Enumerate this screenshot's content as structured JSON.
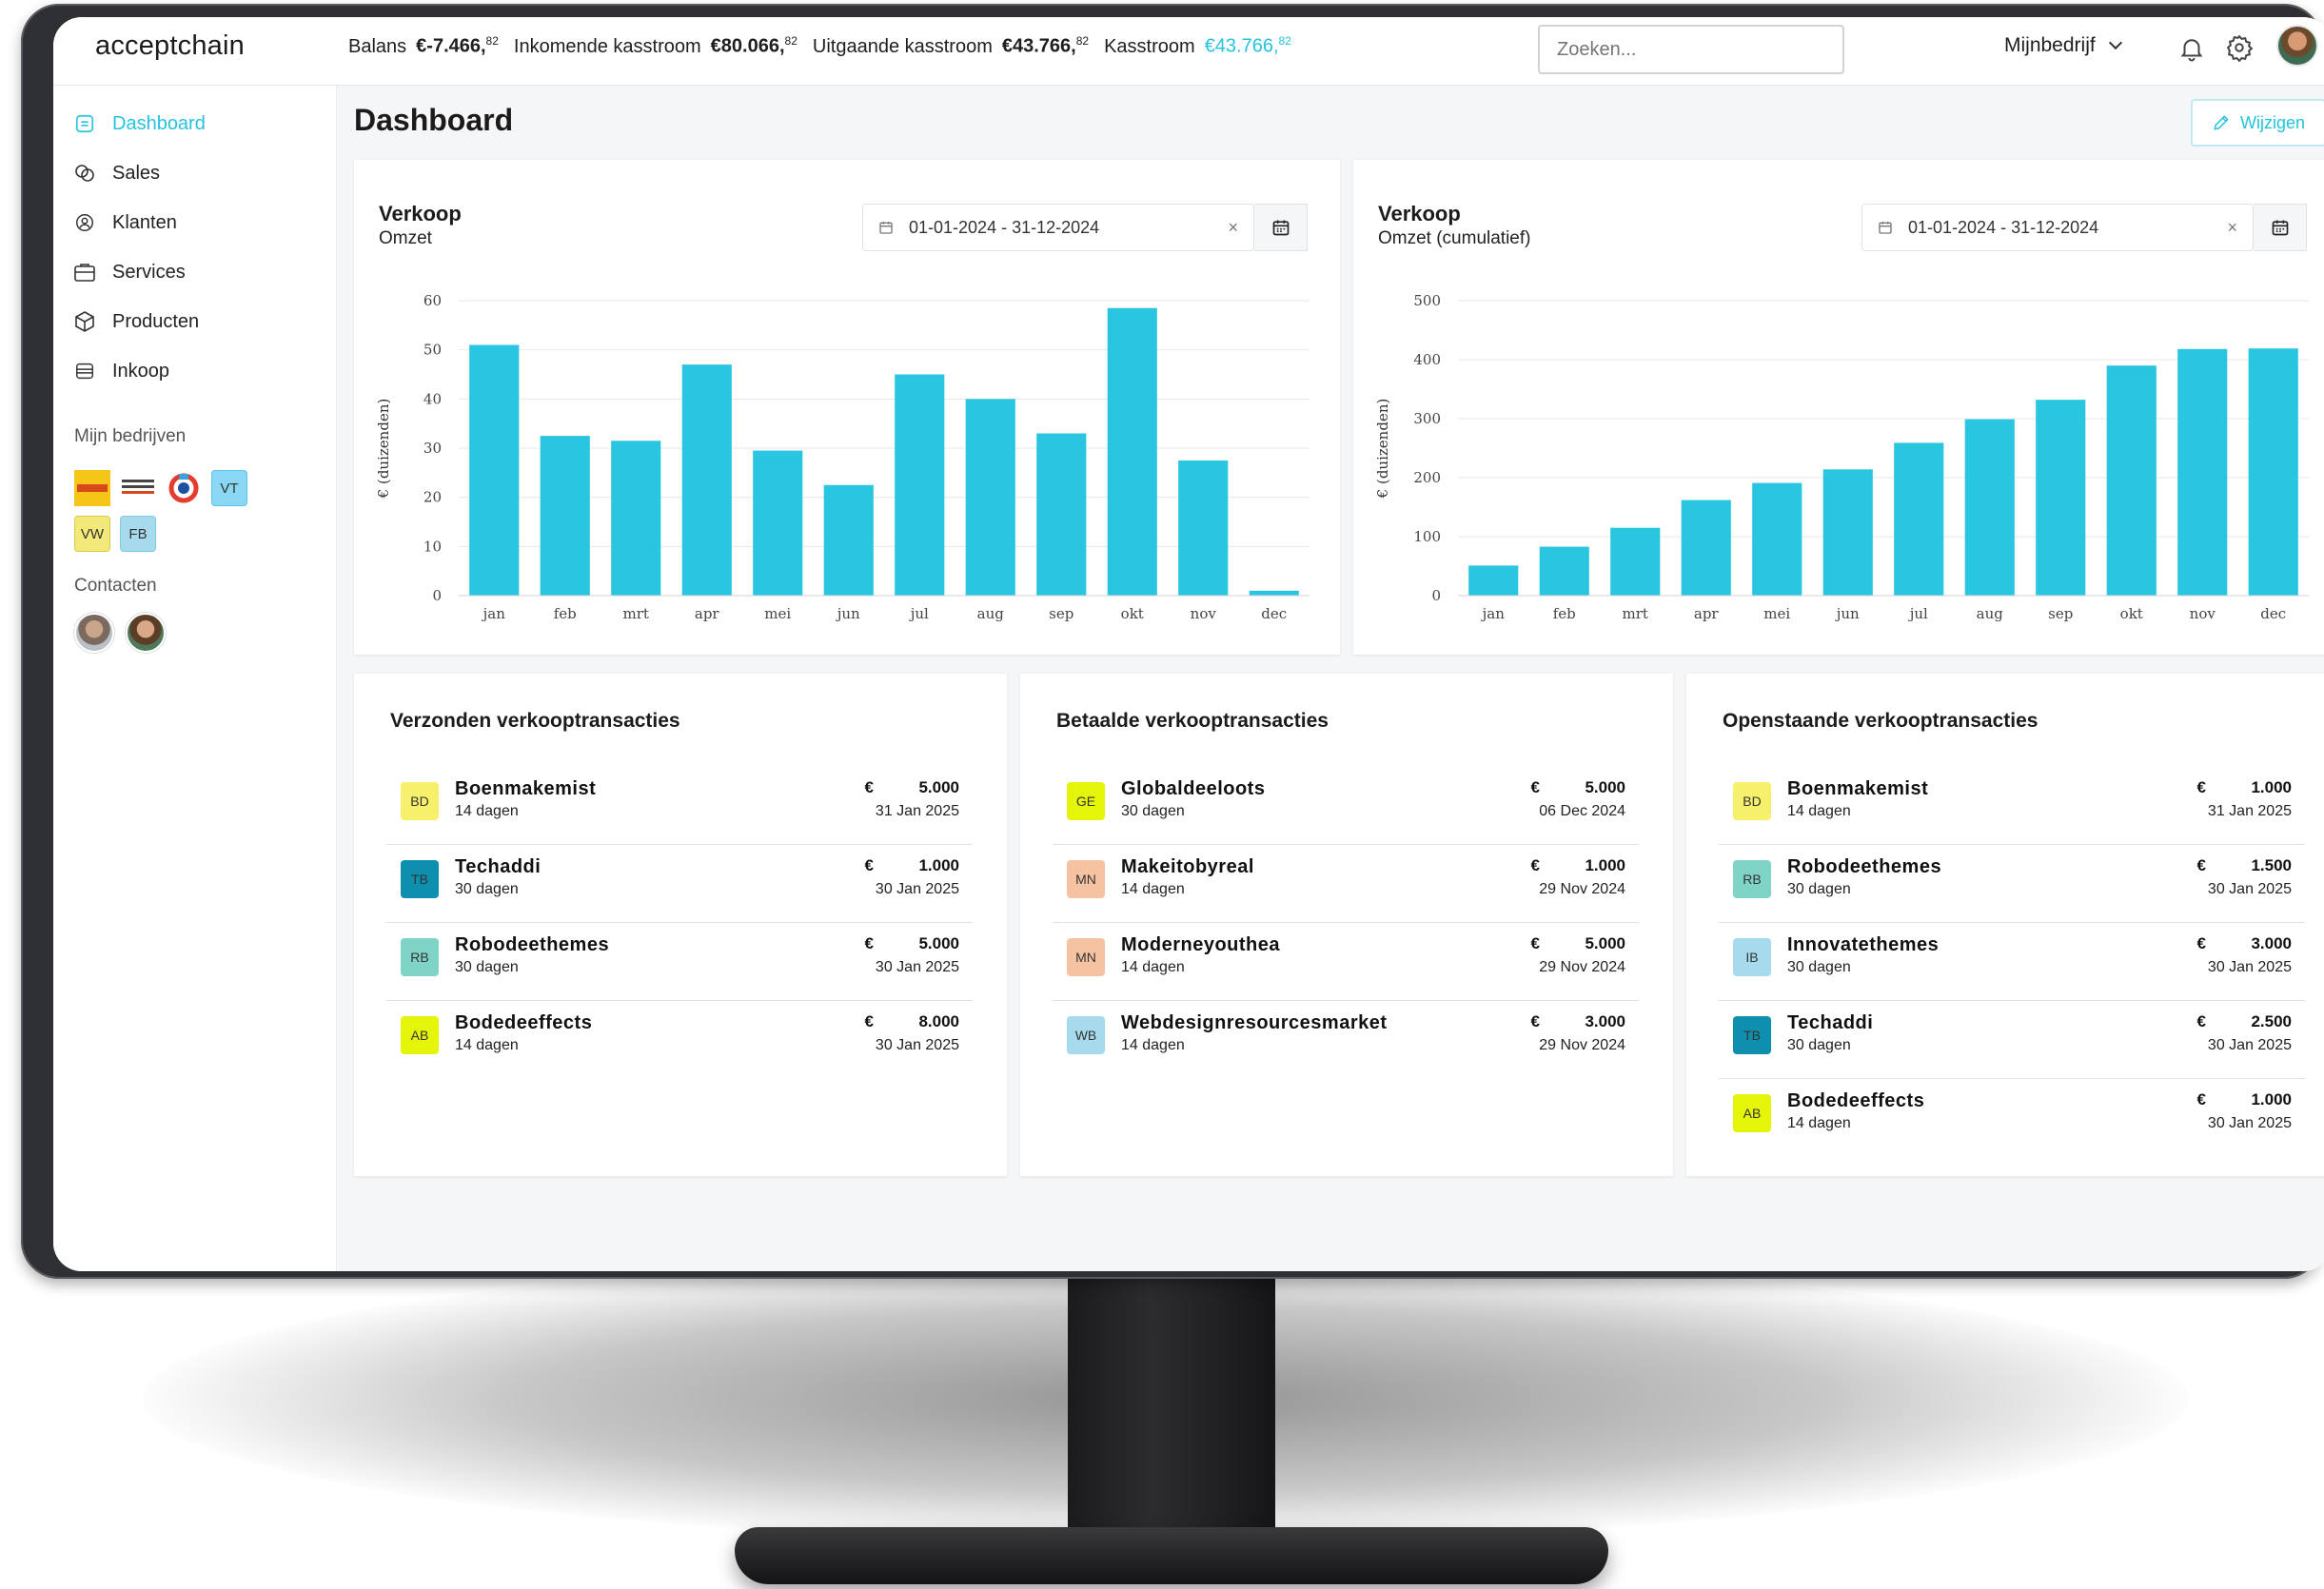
{
  "brand": "acceptchain",
  "stats": [
    {
      "label": "Balans",
      "value": "€-7.466,",
      "cents": "82",
      "accent": false
    },
    {
      "label": "Inkomende kasstroom",
      "value": "€80.066,",
      "cents": "82",
      "accent": false
    },
    {
      "label": "Uitgaande kasstroom",
      "value": "€43.766,",
      "cents": "82",
      "accent": false
    },
    {
      "label": "Kasstroom",
      "value": "€43.766,",
      "cents": "82",
      "accent": true
    }
  ],
  "search": {
    "placeholder": "Zoeken..."
  },
  "company": {
    "selected": "Mijnbedrijf"
  },
  "sidebar": {
    "items": [
      {
        "label": "Dashboard",
        "icon": "dashboard-icon"
      },
      {
        "label": "Sales",
        "icon": "coins-icon"
      },
      {
        "label": "Klanten",
        "icon": "user-circle-icon"
      },
      {
        "label": "Services",
        "icon": "briefcase-icon"
      },
      {
        "label": "Producten",
        "icon": "box-icon"
      },
      {
        "label": "Inkoop",
        "icon": "wallet-icon"
      }
    ],
    "companies_label": "Mijn bedrijven",
    "companies": [
      "VT",
      "VW",
      "FB"
    ],
    "contacts_label": "Contacten"
  },
  "page": {
    "title": "Dashboard",
    "edit_label": "Wijzigen"
  },
  "charts": [
    {
      "title": "Verkoop",
      "subtitle": "Omzet",
      "date_range": "01-01-2024 - 31-12-2024",
      "clear": "×"
    },
    {
      "title": "Verkoop",
      "subtitle": "Omzet (cumulatief)",
      "date_range": "01-01-2024 - 31-12-2024",
      "clear": "×"
    }
  ],
  "chart_data": [
    {
      "type": "bar",
      "title": "Verkoop",
      "subtitle": "Omzet",
      "categories": [
        "jan",
        "feb",
        "mrt",
        "apr",
        "mei",
        "jun",
        "jul",
        "aug",
        "sep",
        "okt",
        "nov",
        "dec"
      ],
      "values": [
        51,
        32.5,
        31.5,
        47,
        29.5,
        22.5,
        45,
        40,
        33,
        58.5,
        27.5,
        1
      ],
      "ylim": [
        0,
        60
      ],
      "yticks": [
        0,
        10,
        20,
        30,
        40,
        50,
        60
      ],
      "ylabel": "€ (duizenden)",
      "xlabel": "",
      "grid": true,
      "color": "#2ac5e0"
    },
    {
      "type": "bar",
      "title": "Verkoop",
      "subtitle": "Omzet (cumulatief)",
      "categories": [
        "jan",
        "feb",
        "mrt",
        "apr",
        "mei",
        "jun",
        "jul",
        "aug",
        "sep",
        "okt",
        "nov",
        "dec"
      ],
      "values": [
        51,
        83,
        115,
        162,
        191,
        214,
        259,
        299,
        332,
        390,
        418,
        419
      ],
      "ylim": [
        0,
        500
      ],
      "yticks": [
        0,
        100,
        200,
        300,
        400,
        500
      ],
      "ylabel": "€ (duizenden)",
      "xlabel": "",
      "grid": true,
      "color": "#2ac5e0"
    }
  ],
  "transactions": [
    {
      "title": "Verzonden verkooptransacties",
      "rows": [
        {
          "initials": "BD",
          "color": "#f7f06a",
          "name": "Boenmakemist",
          "days": "14 dagen",
          "currency": "€",
          "amount": "5.000",
          "date": "31 Jan 2025"
        },
        {
          "initials": "TB",
          "color": "#0e8fae",
          "name": "Techaddi",
          "days": "30 dagen",
          "currency": "€",
          "amount": "1.000",
          "date": "30 Jan 2025"
        },
        {
          "initials": "RB",
          "color": "#7fd3c7",
          "name": "Robodeethemes",
          "days": "30 dagen",
          "currency": "€",
          "amount": "5.000",
          "date": "30 Jan 2025"
        },
        {
          "initials": "AB",
          "color": "#e5f50a",
          "name": "Bodedeeffects",
          "days": "14 dagen",
          "currency": "€",
          "amount": "8.000",
          "date": "30 Jan 2025"
        }
      ]
    },
    {
      "title": "Betaalde verkooptransacties",
      "rows": [
        {
          "initials": "GE",
          "color": "#e5f50a",
          "name": "Globaldeeloots",
          "days": "30 dagen",
          "currency": "€",
          "amount": "5.000",
          "date": "06 Dec 2024"
        },
        {
          "initials": "MN",
          "color": "#f6c3a2",
          "name": "Makeitobyreal",
          "days": "14 dagen",
          "currency": "€",
          "amount": "1.000",
          "date": "29 Nov 2024"
        },
        {
          "initials": "MN",
          "color": "#f6c3a2",
          "name": "Moderneyouthea",
          "days": "14 dagen",
          "currency": "€",
          "amount": "5.000",
          "date": "29 Nov 2024"
        },
        {
          "initials": "WB",
          "color": "#a6dbee",
          "name": "Webdesignresourcesmarket",
          "days": "14 dagen",
          "currency": "€",
          "amount": "3.000",
          "date": "29 Nov 2024"
        }
      ]
    },
    {
      "title": "Openstaande verkooptransacties",
      "rows": [
        {
          "initials": "BD",
          "color": "#f7f06a",
          "name": "Boenmakemist",
          "days": "14 dagen",
          "currency": "€",
          "amount": "1.000",
          "date": "31 Jan 2025"
        },
        {
          "initials": "RB",
          "color": "#7fd3c7",
          "name": "Robodeethemes",
          "days": "30 dagen",
          "currency": "€",
          "amount": "1.500",
          "date": "30 Jan 2025"
        },
        {
          "initials": "IB",
          "color": "#a6dbee",
          "name": "Innovatethemes",
          "days": "30 dagen",
          "currency": "€",
          "amount": "3.000",
          "date": "30 Jan 2025"
        },
        {
          "initials": "TB",
          "color": "#0e8fae",
          "name": "Techaddi",
          "days": "30 dagen",
          "currency": "€",
          "amount": "2.500",
          "date": "30 Jan 2025"
        },
        {
          "initials": "AB",
          "color": "#e5f50a",
          "name": "Bodedeeffects",
          "days": "14 dagen",
          "currency": "€",
          "amount": "1.000",
          "date": "30 Jan 2025"
        }
      ]
    }
  ],
  "colors": {
    "accent": "#24c3de",
    "bar": "#2ac5e0",
    "background": "#f5f6f7"
  }
}
